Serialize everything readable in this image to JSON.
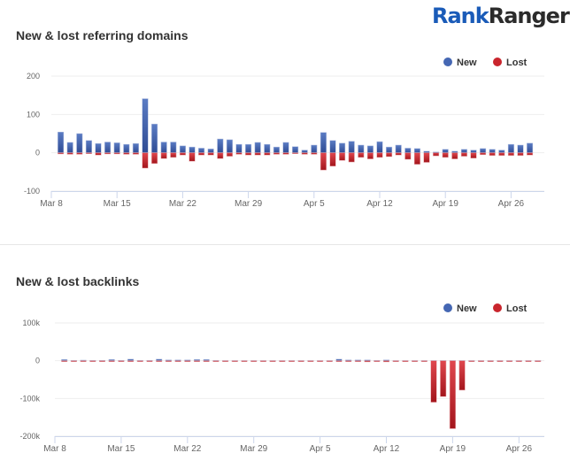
{
  "logo": {
    "part1": "Rank",
    "part2": "Ranger"
  },
  "colors": {
    "new": "#4567b3",
    "lost": "#c9252d"
  },
  "chart_data": [
    {
      "type": "bar",
      "title": "New & lost referring domains",
      "legend": {
        "placement": "top-right",
        "entries": [
          "New",
          "Lost"
        ]
      },
      "x_tick_labels": [
        "Mar 8",
        "Mar 15",
        "Mar 22",
        "Mar 29",
        "Apr 5",
        "Apr 12",
        "Apr 19",
        "Apr 26"
      ],
      "y_tick_labels": [
        "200",
        "100",
        "0",
        "-100"
      ],
      "ylim": [
        -100,
        200
      ],
      "grid": true,
      "start_date": "Mar 9",
      "series": [
        {
          "name": "New",
          "values": [
            54,
            27,
            50,
            32,
            24,
            28,
            26,
            22,
            24,
            141,
            75,
            28,
            28,
            18,
            15,
            12,
            10,
            36,
            34,
            22,
            22,
            27,
            22,
            15,
            27,
            16,
            7,
            20,
            53,
            32,
            25,
            30,
            20,
            18,
            29,
            15,
            20,
            12,
            11,
            4,
            2,
            9,
            4,
            9,
            7,
            11,
            9,
            7,
            22,
            20,
            25
          ]
        },
        {
          "name": "Lost",
          "values": [
            -3,
            -4,
            -4,
            -1,
            -6,
            -3,
            -3,
            -4,
            -4,
            -40,
            -28,
            -15,
            -12,
            -6,
            -22,
            -6,
            -6,
            -15,
            -9,
            -4,
            -6,
            -6,
            -6,
            -4,
            -4,
            -1,
            -4,
            -4,
            -45,
            -35,
            -20,
            -24,
            -12,
            -16,
            -12,
            -10,
            -6,
            -17,
            -30,
            -25,
            -8,
            -12,
            -16,
            -9,
            -14,
            -5,
            -7,
            -7,
            -7,
            -7,
            -6
          ]
        }
      ]
    },
    {
      "type": "bar",
      "title": "New & lost backlinks",
      "legend": {
        "placement": "top-right",
        "entries": [
          "New",
          "Lost"
        ]
      },
      "x_tick_labels": [
        "Mar 8",
        "Mar 15",
        "Mar 22",
        "Mar 29",
        "Apr 5",
        "Apr 12",
        "Apr 19",
        "Apr 26"
      ],
      "y_tick_labels": [
        "100k",
        "0",
        "-100k",
        "-200k"
      ],
      "ylim": [
        -200000,
        100000
      ],
      "grid": true,
      "start_date": "Mar 9",
      "series": [
        {
          "name": "New",
          "values": [
            3000,
            1000,
            1500,
            1000,
            1000,
            3000,
            1000,
            4000,
            1000,
            1000,
            4000,
            2000,
            2000,
            2000,
            3000,
            3000,
            1000,
            500,
            500,
            500,
            500,
            500,
            500,
            500,
            500,
            500,
            500,
            500,
            500,
            4000,
            2000,
            2000,
            2000,
            1000,
            2000,
            500,
            500,
            500,
            500,
            500,
            500,
            500,
            500,
            500,
            500,
            500,
            500,
            500,
            500,
            500,
            500
          ]
        },
        {
          "name": "Lost",
          "values": [
            -500,
            -500,
            -500,
            -500,
            -500,
            -500,
            -500,
            -500,
            -500,
            -500,
            -500,
            -500,
            -500,
            -500,
            -500,
            -2000,
            -2000,
            -1500,
            -1500,
            -1500,
            -1000,
            -1000,
            -1000,
            -1500,
            -1000,
            -1000,
            -1500,
            -1500,
            -1000,
            -1500,
            -1500,
            -1500,
            -3000,
            -1000,
            -3000,
            -1500,
            -2500,
            -1500,
            -1500,
            -110000,
            -95000,
            -180000,
            -78000,
            -500,
            -500,
            -500,
            -500,
            -500,
            -500,
            -500,
            -500
          ]
        }
      ]
    }
  ]
}
